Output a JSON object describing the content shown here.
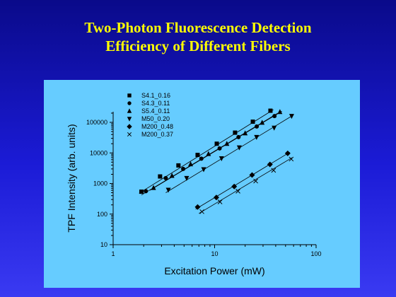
{
  "slide": {
    "title_line1": "Two-Photon Fluorescence Detection",
    "title_line2": "Efficiency of Different Fibers"
  },
  "colors": {
    "background_top": "#0a0a8a",
    "background_bottom": "#3a3af2",
    "title": "#ffff00",
    "plot_panel": "#66ccff",
    "ink": "#000000"
  },
  "chart_data": {
    "type": "scatter",
    "xlabel": "Excitation Power (mW)",
    "ylabel": "TPF Intensity (arb. units)",
    "xscale": "log",
    "yscale": "log",
    "xlim": [
      1,
      100
    ],
    "ylim": [
      10,
      1000000
    ],
    "x_ticks": [
      1,
      10,
      100
    ],
    "y_ticks": [
      10,
      100,
      1000,
      10000,
      100000
    ],
    "x_tick_labels": [
      "1",
      "10",
      "100"
    ],
    "y_tick_labels": [
      "10",
      "100",
      "1000",
      "10000",
      "100000"
    ],
    "grid": false,
    "legend_position": "top-left",
    "fit_lines": true,
    "series": [
      {
        "name": "S4.1_0.16",
        "marker": "square",
        "x": [
          1.9,
          2.9,
          4.4,
          6.8,
          10.5,
          15.9,
          23.8,
          35.5
        ],
        "y": [
          540,
          1700,
          3900,
          8600,
          20000,
          46000,
          105000,
          240000
        ],
        "fit": [
          [
            1.8,
            480
          ],
          [
            38,
            260000
          ]
        ]
      },
      {
        "name": "S4.3_0.11",
        "marker": "circle",
        "x": [
          2.1,
          3.3,
          4.9,
          7.4,
          11.2,
          17.2,
          26.0,
          38.9
        ],
        "y": [
          560,
          1500,
          3000,
          6500,
          14000,
          33000,
          73000,
          160000
        ],
        "fit": [
          [
            1.9,
            420
          ],
          [
            42,
            200000
          ]
        ]
      },
      {
        "name": "S5.4_0.11",
        "marker": "triangle-up",
        "x": [
          2.5,
          3.8,
          5.8,
          8.7,
          13.2,
          20.0,
          29.4,
          44.0
        ],
        "y": [
          720,
          1800,
          4300,
          9300,
          20000,
          44000,
          98000,
          220000
        ],
        "fit": [
          [
            2.3,
            600
          ],
          [
            46,
            230000
          ]
        ]
      },
      {
        "name": "M50_0.20",
        "marker": "triangle-down",
        "x": [
          3.5,
          5.3,
          7.8,
          11.7,
          17.5,
          25.9,
          38.6,
          57.4
        ],
        "y": [
          620,
          1500,
          2900,
          6600,
          15000,
          33000,
          66000,
          160000
        ],
        "fit": [
          [
            3.3,
            500
          ],
          [
            60,
            175000
          ]
        ]
      },
      {
        "name": "M200_0.48",
        "marker": "diamond",
        "x": [
          6.8,
          10.4,
          15.6,
          23.4,
          35.1,
          52.5
        ],
        "y": [
          170,
          350,
          800,
          1900,
          4200,
          9700
        ],
        "fit": [
          [
            6.5,
            145
          ],
          [
            55,
            10500
          ]
        ]
      },
      {
        "name": "M200_0.37",
        "marker": "cross",
        "x": [
          7.5,
          11.3,
          17.0,
          25.4,
          38.1,
          56.9
        ],
        "y": [
          120,
          250,
          560,
          1200,
          2700,
          6300
        ],
        "fit": [
          [
            7.0,
            105
          ],
          [
            58,
            7000
          ]
        ]
      }
    ]
  }
}
